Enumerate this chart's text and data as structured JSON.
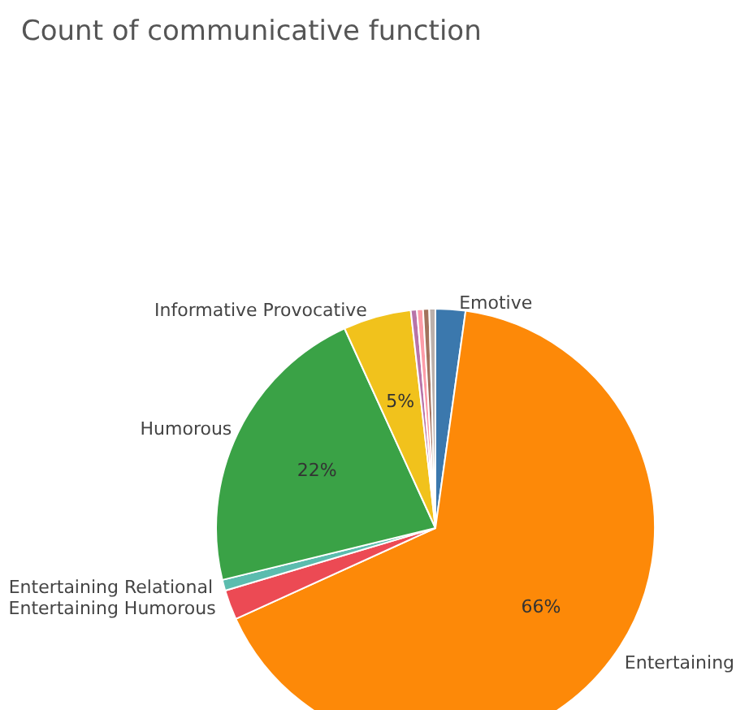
{
  "chart_data": {
    "type": "pie",
    "title": "Count of communicative function",
    "categories": [
      "Emotive",
      "Entertaining",
      "Entertaining Humorous",
      "Entertaining Relational",
      "Humorous",
      "Informative Provocative",
      null,
      null,
      null,
      null
    ],
    "values": [
      2.2,
      66,
      2.2,
      0.8,
      22,
      5,
      0.45,
      0.45,
      0.45,
      0.45
    ],
    "value_labels": [
      null,
      "66%",
      null,
      null,
      "22%",
      "5%",
      null,
      null,
      null,
      null
    ],
    "colors": [
      "#3b78ad",
      "#fd8908",
      "#ec4a54",
      "#5bbcae",
      "#3aa246",
      "#f1c21c",
      "#b874a8",
      "#fd9ca8",
      "#a3725d",
      "#bbb0ab"
    ],
    "legend": false
  }
}
